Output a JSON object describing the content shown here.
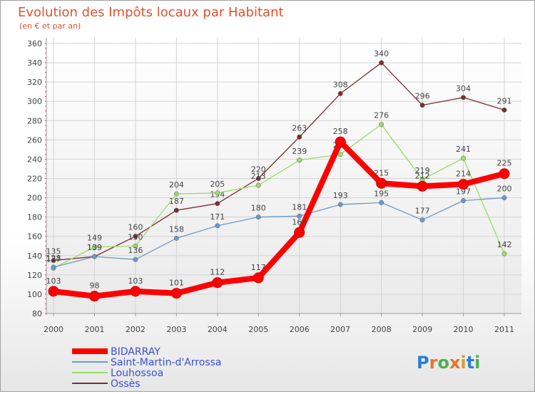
{
  "chart_data": {
    "type": "line",
    "title": "Evolution des Impôts locaux par Habitant",
    "subtitle": "(en € et par an)",
    "xlabel": "",
    "ylabel": "",
    "categories": [
      "2000",
      "2001",
      "2002",
      "2003",
      "2004",
      "2005",
      "2006",
      "2007",
      "2008",
      "2009",
      "2010",
      "2011"
    ],
    "ylim": [
      80,
      360
    ],
    "yticks": [
      "80",
      "100",
      "120",
      "140",
      "160",
      "180",
      "200",
      "220",
      "240",
      "260",
      "280",
      "300",
      "320",
      "340",
      "360"
    ],
    "grid": true,
    "legend_position": "bottom-left",
    "series": [
      {
        "name": "BIDARRAY",
        "color": "#ff0000",
        "values": [
          103,
          98,
          103,
          101,
          112,
          117,
          164,
          258,
          215,
          212,
          214,
          225
        ]
      },
      {
        "name": "Saint-Martin-d'Arrossa",
        "color": "#6a9bc9",
        "values": [
          128,
          139,
          136,
          158,
          171,
          180,
          181,
          193,
          195,
          177,
          197,
          200
        ]
      },
      {
        "name": "Louhossoa",
        "color": "#99dd66",
        "values": [
          127,
          149,
          150,
          204,
          205,
          213,
          239,
          245,
          276,
          219,
          241,
          142
        ]
      },
      {
        "name": "Ossès",
        "color": "#7a2e2e",
        "values": [
          135,
          139,
          160,
          187,
          194,
          220,
          263,
          308,
          340,
          296,
          304,
          291
        ]
      }
    ]
  },
  "logo": {
    "text": "Proxiti"
  }
}
